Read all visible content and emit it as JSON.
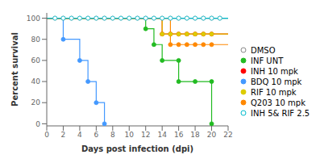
{
  "chart_data": {
    "type": "line",
    "xlabel": "Days post infection (dpi)",
    "ylabel": "Percent survival",
    "xlim": [
      0,
      22
    ],
    "ylim": [
      -2,
      105
    ],
    "xticks": [
      0,
      2,
      4,
      6,
      8,
      10,
      12,
      14,
      16,
      18,
      20,
      22
    ],
    "yticks": [
      0,
      20,
      40,
      60,
      80,
      100
    ],
    "grid": false,
    "legend": "right",
    "series": [
      {
        "name": "DMSO",
        "color": "#888888",
        "marker": "open_circle",
        "x": [
          0,
          22
        ],
        "values": [
          100,
          100
        ],
        "marker_x": [
          1,
          2,
          3,
          4,
          5,
          6,
          7,
          8,
          9,
          10,
          11,
          12,
          13,
          14,
          15,
          16,
          17,
          18,
          19,
          20,
          21
        ],
        "marker_values": [
          100,
          100,
          100,
          100,
          100,
          100,
          100,
          100,
          100,
          100,
          100,
          100,
          100,
          100,
          100,
          100,
          100,
          100,
          100,
          100,
          100
        ]
      },
      {
        "name": "INF UNT",
        "color": "#22bb22",
        "marker": "circle",
        "x": [
          0,
          12,
          12,
          13,
          13,
          14,
          14,
          16,
          16,
          18,
          20,
          20
        ],
        "values": [
          100,
          100,
          90,
          90,
          75,
          75,
          60,
          60,
          40,
          40,
          40,
          0
        ],
        "marker_x": [
          12,
          13,
          14,
          16,
          16,
          18,
          20,
          20
        ],
        "marker_values": [
          90,
          75,
          60,
          60,
          40,
          40,
          40,
          0
        ]
      },
      {
        "name": "INH 10 mpk",
        "color": "#ff0000",
        "marker": "circle",
        "x": [
          0,
          14,
          14,
          22
        ],
        "values": [
          100,
          100,
          85,
          85
        ],
        "marker_x": [
          14,
          15,
          16,
          17,
          18,
          19,
          20
        ],
        "marker_values": [
          85,
          85,
          85,
          85,
          85,
          85,
          85
        ]
      },
      {
        "name": "BDQ 10 mpk",
        "color": "#4499ff",
        "marker": "circle",
        "x": [
          0,
          2,
          2,
          4,
          4,
          5,
          5,
          6,
          6,
          7,
          7
        ],
        "values": [
          100,
          100,
          80,
          80,
          60,
          60,
          40,
          40,
          20,
          20,
          0
        ],
        "marker_x": [
          2,
          4,
          5,
          6,
          7
        ],
        "marker_values": [
          80,
          60,
          40,
          20,
          0
        ]
      },
      {
        "name": "RIF 10 mpk",
        "color": "#ddcc00",
        "marker": "circle",
        "x": [
          0,
          14,
          14,
          22
        ],
        "values": [
          100,
          100,
          85,
          85
        ],
        "marker_x": [
          14,
          15,
          16,
          17,
          18,
          19,
          20
        ],
        "marker_values": [
          85,
          85,
          85,
          85,
          85,
          85,
          85
        ]
      },
      {
        "name": "Q203 10 mpk",
        "color": "#ff8800",
        "marker": "circle",
        "x": [
          0,
          15,
          15,
          22
        ],
        "values": [
          100,
          100,
          75,
          75
        ],
        "marker_x": [
          15,
          16,
          17,
          18,
          19,
          20
        ],
        "marker_values": [
          75,
          75,
          75,
          75,
          75,
          75
        ]
      },
      {
        "name": "INH 5& RIF 2.5",
        "color": "#00bbcc",
        "marker": "open_circle",
        "x": [
          0,
          22
        ],
        "values": [
          100,
          100
        ],
        "marker_x": [
          1,
          2,
          3,
          4,
          5,
          6,
          7,
          8,
          9,
          10,
          11,
          12,
          13,
          14,
          15,
          16,
          17,
          18,
          19,
          20,
          21
        ],
        "marker_values": [
          100,
          100,
          100,
          100,
          100,
          100,
          100,
          100,
          100,
          100,
          100,
          100,
          100,
          100,
          100,
          100,
          100,
          100,
          100,
          100,
          100
        ]
      }
    ]
  }
}
